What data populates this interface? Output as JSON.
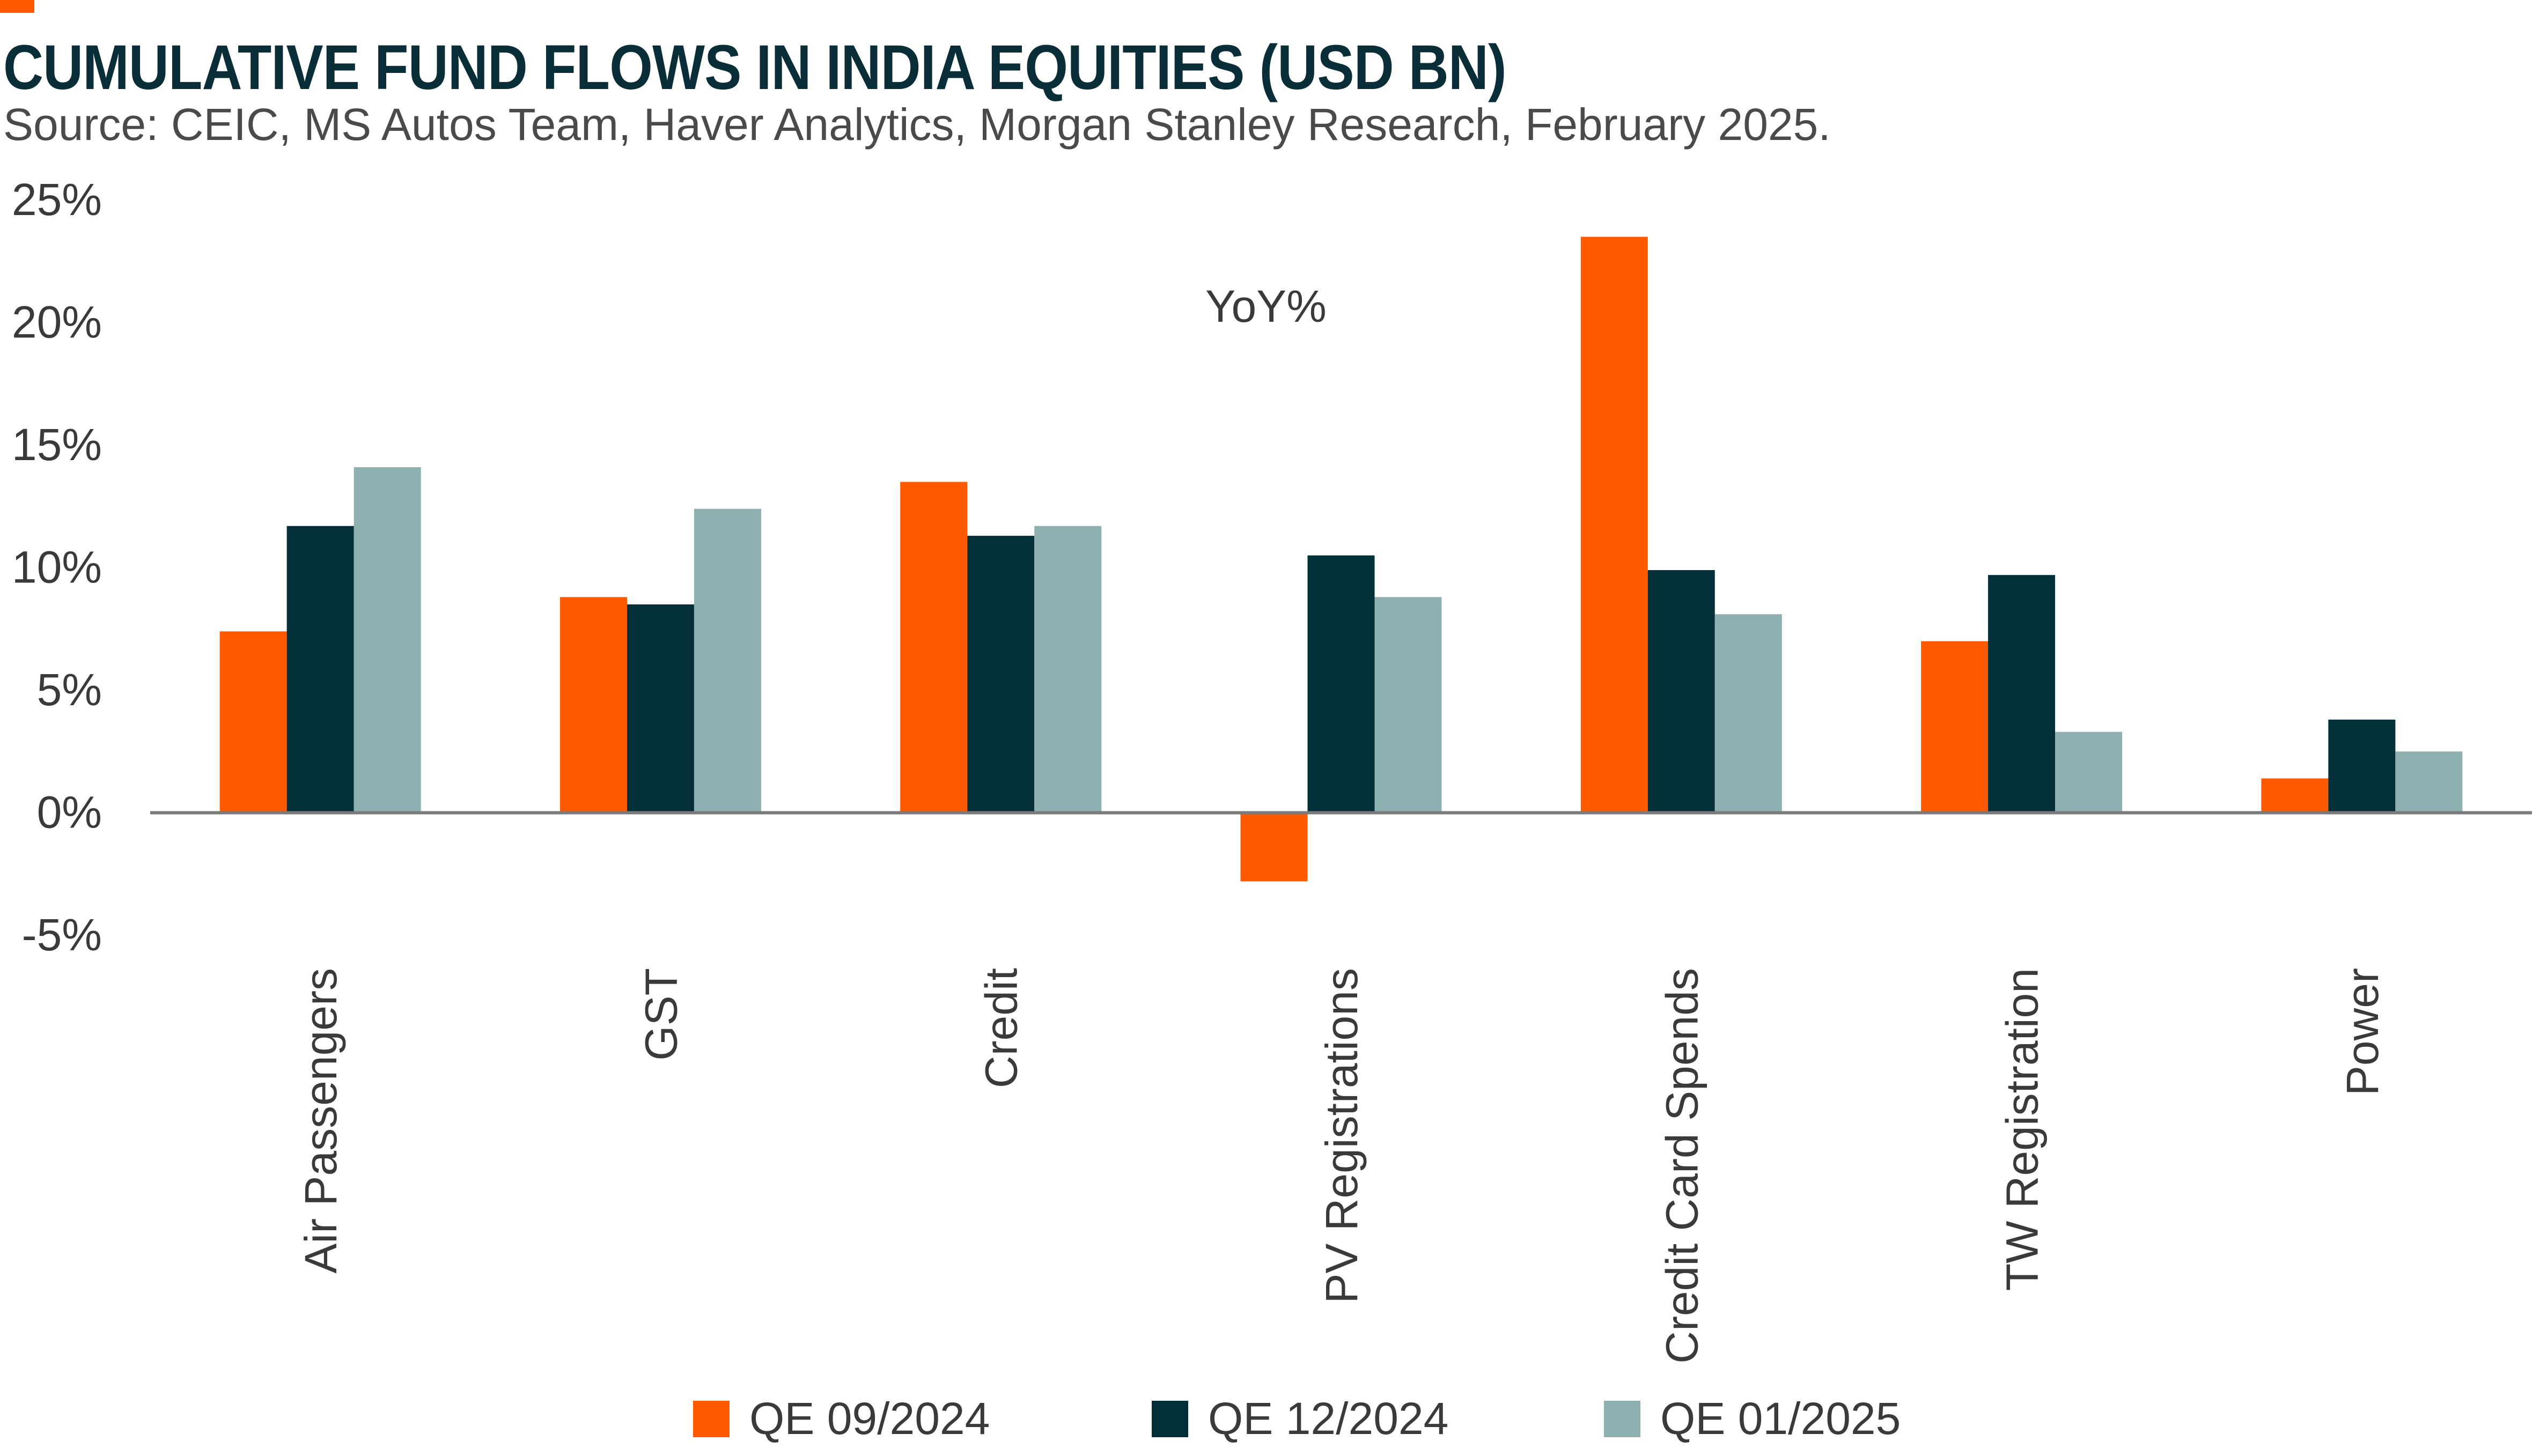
{
  "header": {
    "title": "CUMULATIVE FUND FLOWS IN INDIA EQUITIES (USD BN)",
    "source": "Source: CEIC, MS Autos Team, Haver Analytics, Morgan Stanley Research, February 2025."
  },
  "colors": {
    "accent": "#FF5A00",
    "series": [
      "#FF5A00",
      "#022F38",
      "#8FB0B0"
    ],
    "axis": "#7a7a7a"
  },
  "chart_data": {
    "type": "bar",
    "title": "CUMULATIVE FUND FLOWS IN INDIA EQUITIES (USD BN)",
    "annotation": "YoY%",
    "categories": [
      "Air Passengers",
      "GST",
      "Credit",
      "PV Registrations",
      "Credit Card Spends",
      "TW Registration",
      "Power"
    ],
    "series": [
      {
        "name": "QE 09/2024",
        "values": [
          7.4,
          8.8,
          13.5,
          -2.8,
          23.5,
          7.0,
          1.4
        ]
      },
      {
        "name": "QE 12/2024",
        "values": [
          11.7,
          8.5,
          11.3,
          10.5,
          9.9,
          9.7,
          3.8
        ]
      },
      {
        "name": "QE 01/2025",
        "values": [
          14.1,
          12.4,
          11.7,
          8.8,
          8.1,
          3.3,
          2.5
        ]
      }
    ],
    "ylim": [
      -5,
      25
    ],
    "yticks": [
      -5,
      0,
      5,
      10,
      15,
      20,
      25
    ],
    "ytick_labels": [
      "-5%",
      "0%",
      "5%",
      "10%",
      "15%",
      "20%",
      "25%"
    ],
    "grid": false,
    "legend_position": "bottom"
  }
}
